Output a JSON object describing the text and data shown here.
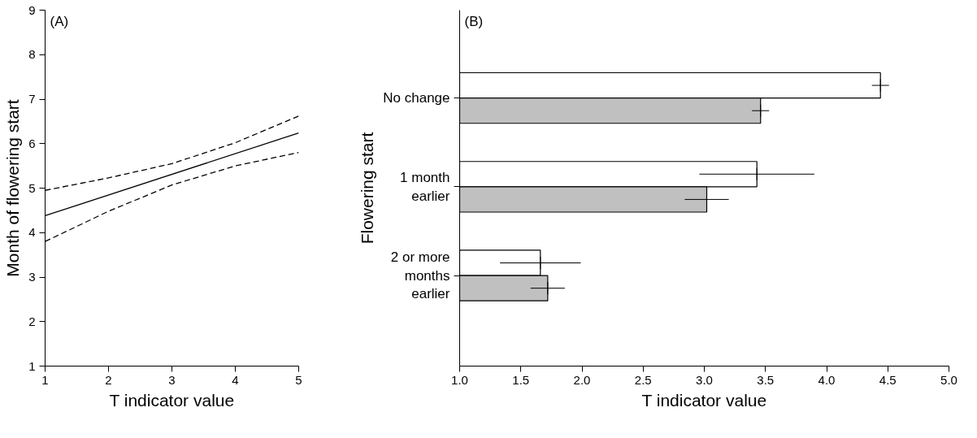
{
  "chart_data": [
    {
      "type": "line",
      "xlabel": "T indicator value",
      "ylabel": "Month of flowering start",
      "annotations": [
        "(A)"
      ],
      "xlim": [
        1,
        5
      ],
      "ylim": [
        1,
        9
      ],
      "xticks": [
        1,
        2,
        3,
        4,
        5
      ],
      "yticks": [
        1,
        2,
        3,
        4,
        5,
        6,
        7,
        8,
        9
      ],
      "series": [
        {
          "color": "#000000",
          "line_style": "solid",
          "x": [
            1,
            5
          ],
          "values": [
            4.38,
            6.24
          ]
        },
        {
          "color": "#000000",
          "line_style": "dashed",
          "x": [
            1,
            2,
            3,
            4,
            5
          ],
          "values": [
            4.95,
            5.23,
            5.55,
            6.02,
            6.62
          ]
        },
        {
          "color": "#000000",
          "line_style": "dashed",
          "x": [
            1,
            2,
            3,
            4,
            5
          ],
          "values": [
            3.8,
            4.48,
            5.07,
            5.5,
            5.8
          ]
        }
      ]
    },
    {
      "type": "bar",
      "orientation": "horizontal",
      "xlabel": "T indicator value",
      "ylabel": "Flowering start",
      "annotations": [
        "(B)"
      ],
      "categories": [
        "No change",
        "1 month\nearlier",
        "2 or more\nmonths\nearlier"
      ],
      "xlim": [
        1,
        5
      ],
      "xticks": [
        {
          "value": 1,
          "label": "1.0"
        },
        {
          "value": 1.5,
          "label": "1.5"
        },
        {
          "value": 2,
          "label": "2.0"
        },
        {
          "value": 2.5,
          "label": "2.5"
        },
        {
          "value": 3,
          "label": "3.0"
        },
        {
          "value": 3.5,
          "label": "3.5"
        },
        {
          "value": 4,
          "label": "4.0"
        },
        {
          "value": 4.5,
          "label": "4.5"
        },
        {
          "value": 5,
          "label": "5.0"
        }
      ],
      "series": [
        {
          "color": "#ffffff",
          "values": [
            4.44,
            3.43,
            1.66
          ],
          "errors": [
            0.07,
            0.47,
            0.33
          ]
        },
        {
          "color": "#c0c0c0",
          "values": [
            3.46,
            3.02,
            1.72
          ],
          "errors": [
            0.07,
            0.18,
            0.14
          ]
        }
      ]
    }
  ]
}
